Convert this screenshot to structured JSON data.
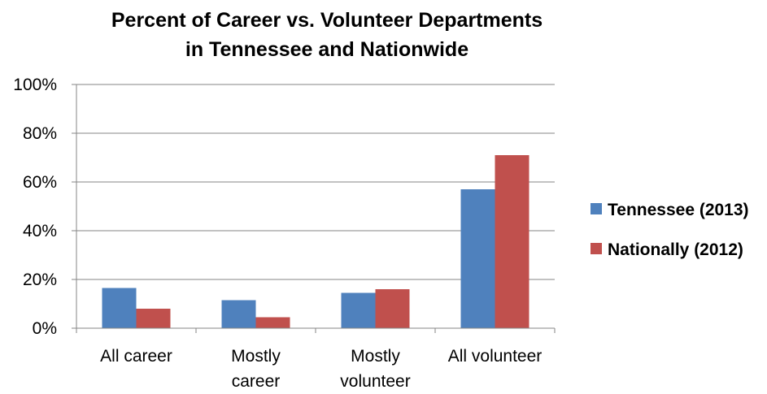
{
  "chart_data": {
    "type": "bar",
    "title_lines": [
      "Percent of Career vs. Volunteer Departments",
      "in Tennessee and Nationwide"
    ],
    "categories": [
      [
        "All career"
      ],
      [
        "Mostly",
        "career"
      ],
      [
        "Mostly",
        "volunteer"
      ],
      [
        "All volunteer"
      ]
    ],
    "series": [
      {
        "name": "Tennessee (2013)",
        "color": "#4F81BD",
        "values": [
          16.5,
          11.5,
          14.5,
          57
        ]
      },
      {
        "name": "Nationally (2012)",
        "color": "#C0504D",
        "values": [
          8,
          4.5,
          16,
          71
        ]
      }
    ],
    "ylim": [
      0,
      100
    ],
    "yticks": [
      0,
      20,
      40,
      60,
      80,
      100
    ],
    "ytick_labels": [
      "0%",
      "20%",
      "40%",
      "60%",
      "80%",
      "100%"
    ],
    "xlabel": "",
    "ylabel": "",
    "grid": true,
    "legend": "right"
  }
}
